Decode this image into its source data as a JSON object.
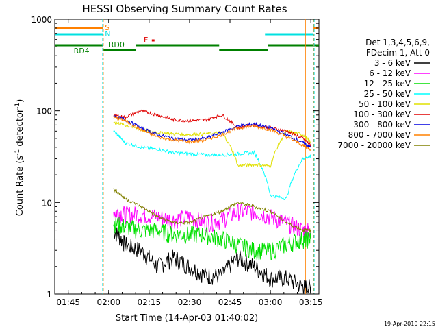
{
  "chart_data": {
    "type": "line",
    "title": "HESSI Observing Summary Count Rates",
    "xlabel": "Start Time (14-Apr-03 01:40:02)",
    "ylabel_main": "Count Rate (s",
    "ylabel_sup1": "-1",
    "ylabel_mid": " detector",
    "ylabel_sup2": "-1",
    "ylabel_end": ")",
    "y_scale": "log",
    "ylim": [
      1,
      1000
    ],
    "xlim": [
      "01:40",
      "03:18"
    ],
    "x_tick_labels": [
      "01:45",
      "02:00",
      "02:15",
      "02:30",
      "02:45",
      "03:00",
      "03:15"
    ],
    "y_tick_labels": [
      "1",
      "10",
      "100",
      "1000"
    ],
    "timestamp": "19-Apr-2010 22:15",
    "legend_header": [
      "Det 1,3,4,5,6,9,",
      "FDecim 1, Att 0"
    ],
    "flags": {
      "S": {
        "label": "S",
        "color": "#ff8000"
      },
      "N": {
        "label": "N",
        "color": "#00e0e0"
      },
      "F": {
        "label": "F",
        "color": "#e00000"
      },
      "RD0": {
        "label": "RD0",
        "color": "#008000"
      },
      "RD4": {
        "label": "RD4",
        "color": "#008000"
      }
    },
    "series": [
      {
        "name": "3 - 6 keV",
        "color": "#000000",
        "x": [
          2.03,
          2.1,
          2.2,
          2.3,
          2.4,
          2.5,
          2.6,
          2.7,
          2.8,
          2.9,
          3.0,
          3.1,
          3.2,
          3.25
        ],
        "y": [
          5,
          3.5,
          3.0,
          2.0,
          2.5,
          2.0,
          1.6,
          1.6,
          2.5,
          2.0,
          1.5,
          1.5,
          1.2,
          1.2
        ]
      },
      {
        "name": "6 - 12 keV",
        "color": "#ff00ff",
        "x": [
          2.03,
          2.1,
          2.2,
          2.3,
          2.4,
          2.5,
          2.6,
          2.7,
          2.8,
          2.9,
          3.0,
          3.1,
          3.2,
          3.25
        ],
        "y": [
          8,
          7.5,
          7.5,
          7.0,
          6.5,
          7.0,
          6.0,
          6.5,
          8.0,
          8.0,
          7.0,
          6.0,
          5.0,
          5.0
        ]
      },
      {
        "name": "12 - 25 keV",
        "color": "#00e000",
        "x": [
          2.03,
          2.1,
          2.2,
          2.3,
          2.4,
          2.5,
          2.6,
          2.7,
          2.8,
          2.9,
          3.0,
          3.1,
          3.2,
          3.25
        ],
        "y": [
          6,
          5.5,
          5.0,
          5.0,
          4.5,
          4.5,
          4.5,
          4.0,
          3.5,
          3.0,
          3.0,
          3.5,
          4.0,
          4.0
        ]
      },
      {
        "name": "25 - 50 keV",
        "color": "#00ffff",
        "x": [
          2.03,
          2.1,
          2.2,
          2.3,
          2.4,
          2.5,
          2.6,
          2.7,
          2.8,
          2.9,
          3.0,
          3.1,
          3.2,
          3.25
        ],
        "y": [
          60,
          45,
          40,
          38,
          35,
          34,
          33,
          33,
          34,
          35,
          12,
          11,
          30,
          32
        ]
      },
      {
        "name": "50 - 100 keV",
        "color": "#e0e000",
        "x": [
          2.03,
          2.1,
          2.2,
          2.3,
          2.4,
          2.5,
          2.6,
          2.7,
          2.8,
          2.9,
          3.0,
          3.1,
          3.2,
          3.25
        ],
        "y": [
          75,
          70,
          62,
          58,
          56,
          55,
          56,
          58,
          25,
          26,
          25,
          60,
          55,
          45
        ]
      },
      {
        "name": "100 - 300 keV",
        "color": "#e00000",
        "x": [
          2.03,
          2.1,
          2.2,
          2.3,
          2.4,
          2.5,
          2.6,
          2.7,
          2.8,
          2.9,
          3.0,
          3.1,
          3.2,
          3.25
        ],
        "y": [
          90,
          85,
          100,
          90,
          80,
          78,
          80,
          90,
          65,
          70,
          65,
          60,
          50,
          42
        ]
      },
      {
        "name": "300 - 800 keV",
        "color": "#0000e0",
        "x": [
          2.03,
          2.1,
          2.2,
          2.3,
          2.4,
          2.5,
          2.6,
          2.7,
          2.8,
          2.9,
          3.0,
          3.1,
          3.2,
          3.25
        ],
        "y": [
          88,
          80,
          65,
          55,
          50,
          48,
          50,
          58,
          68,
          72,
          65,
          55,
          45,
          40
        ]
      },
      {
        "name": "800 - 7000 keV",
        "color": "#ff8000",
        "x": [
          2.03,
          2.1,
          2.2,
          2.3,
          2.4,
          2.5,
          2.6,
          2.7,
          2.8,
          2.9,
          3.0,
          3.1,
          3.2,
          3.25
        ],
        "y": [
          85,
          78,
          62,
          52,
          48,
          46,
          48,
          55,
          65,
          68,
          62,
          52,
          42,
          38
        ]
      },
      {
        "name": "7000 - 20000 keV",
        "color": "#808000",
        "x": [
          2.03,
          2.1,
          2.2,
          2.3,
          2.4,
          2.5,
          2.6,
          2.7,
          2.8,
          2.9,
          3.0,
          3.1,
          3.2,
          3.25
        ],
        "y": [
          14,
          11,
          9,
          7,
          6,
          6,
          7,
          8,
          10,
          9,
          8,
          6,
          5,
          5
        ]
      }
    ]
  }
}
